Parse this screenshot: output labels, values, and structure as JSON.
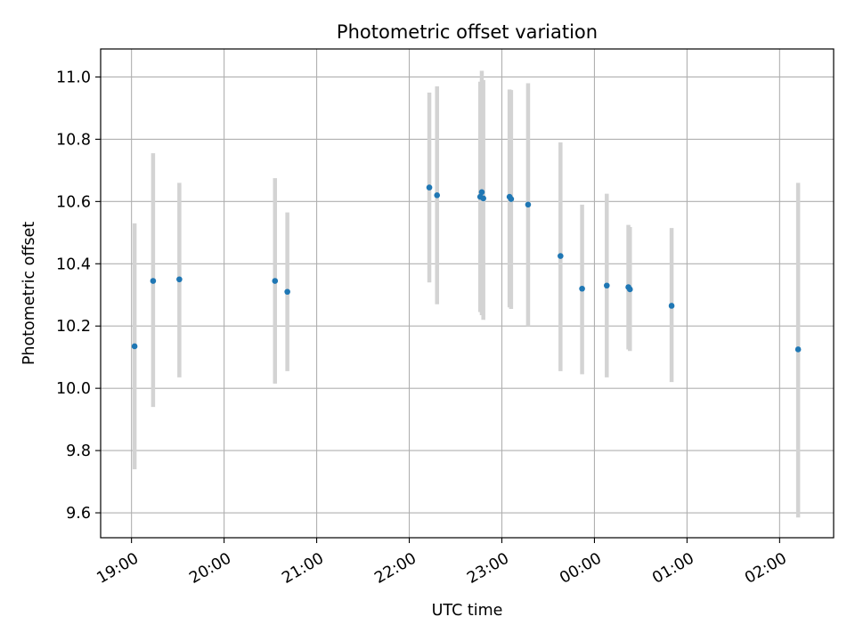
{
  "chart_data": {
    "type": "scatter",
    "title": "Photometric offset variation",
    "xlabel": "UTC time",
    "ylabel": "Photometric offset",
    "x_axis_type": "time",
    "xlim": [
      "18:40",
      "02:35 (+1 day)"
    ],
    "ylim": [
      9.52,
      11.09
    ],
    "grid": true,
    "legend": "none",
    "x_ticks": [
      {
        "value": "19:00",
        "label": "19:00"
      },
      {
        "value": "20:00",
        "label": "20:00"
      },
      {
        "value": "21:00",
        "label": "21:00"
      },
      {
        "value": "22:00",
        "label": "22:00"
      },
      {
        "value": "23:00",
        "label": "23:00"
      },
      {
        "value": "00:00",
        "label": "00:00"
      },
      {
        "value": "01:00",
        "label": "01:00"
      },
      {
        "value": "02:00",
        "label": "02:00"
      }
    ],
    "y_ticks": [
      {
        "value": 9.6,
        "label": "9.6"
      },
      {
        "value": 9.8,
        "label": "9.8"
      },
      {
        "value": 10.0,
        "label": "10.0"
      },
      {
        "value": 10.2,
        "label": "10.2"
      },
      {
        "value": 10.4,
        "label": "10.4"
      },
      {
        "value": 10.6,
        "label": "10.6"
      },
      {
        "value": 10.8,
        "label": "10.8"
      },
      {
        "value": 11.0,
        "label": "11.0"
      }
    ],
    "points": [
      {
        "x": "19:02",
        "y": 10.135,
        "err_low": 9.74,
        "err_high": 10.53
      },
      {
        "x": "19:14",
        "y": 10.345,
        "err_low": 9.94,
        "err_high": 10.755
      },
      {
        "x": "19:31",
        "y": 10.35,
        "err_low": 10.035,
        "err_high": 10.66
      },
      {
        "x": "20:33",
        "y": 10.345,
        "err_low": 10.015,
        "err_high": 10.675
      },
      {
        "x": "20:41",
        "y": 10.31,
        "err_low": 10.055,
        "err_high": 10.565
      },
      {
        "x": "22:13",
        "y": 10.645,
        "err_low": 10.34,
        "err_high": 10.95
      },
      {
        "x": "22:18",
        "y": 10.62,
        "err_low": 10.27,
        "err_high": 10.97
      },
      {
        "x": "22:46",
        "y": 10.615,
        "err_low": 10.245,
        "err_high": 10.985
      },
      {
        "x": "22:47",
        "y": 10.63,
        "err_low": 10.235,
        "err_high": 11.02
      },
      {
        "x": "22:48",
        "y": 10.61,
        "err_low": 10.22,
        "err_high": 10.99
      },
      {
        "x": "23:05",
        "y": 10.615,
        "err_low": 10.26,
        "err_high": 10.96
      },
      {
        "x": "23:06",
        "y": 10.608,
        "err_low": 10.255,
        "err_high": 10.958
      },
      {
        "x": "23:17",
        "y": 10.59,
        "err_low": 10.2,
        "err_high": 10.98
      },
      {
        "x": "23:38",
        "y": 10.425,
        "err_low": 10.055,
        "err_high": 10.79
      },
      {
        "x": "23:52",
        "y": 10.32,
        "err_low": 10.045,
        "err_high": 10.59
      },
      {
        "x": "00:08",
        "y": 10.33,
        "err_low": 10.035,
        "err_high": 10.625
      },
      {
        "x": "00:22",
        "y": 10.325,
        "err_low": 10.125,
        "err_high": 10.525
      },
      {
        "x": "00:23",
        "y": 10.318,
        "err_low": 10.12,
        "err_high": 10.518
      },
      {
        "x": "00:50",
        "y": 10.265,
        "err_low": 10.02,
        "err_high": 10.515
      },
      {
        "x": "02:12",
        "y": 10.125,
        "err_low": 9.585,
        "err_high": 10.66
      }
    ],
    "colors": {
      "marker": "#1f77b4",
      "errorbar": "#d3d3d3",
      "grid": "#b0b0b0",
      "axes": "#000000"
    }
  }
}
